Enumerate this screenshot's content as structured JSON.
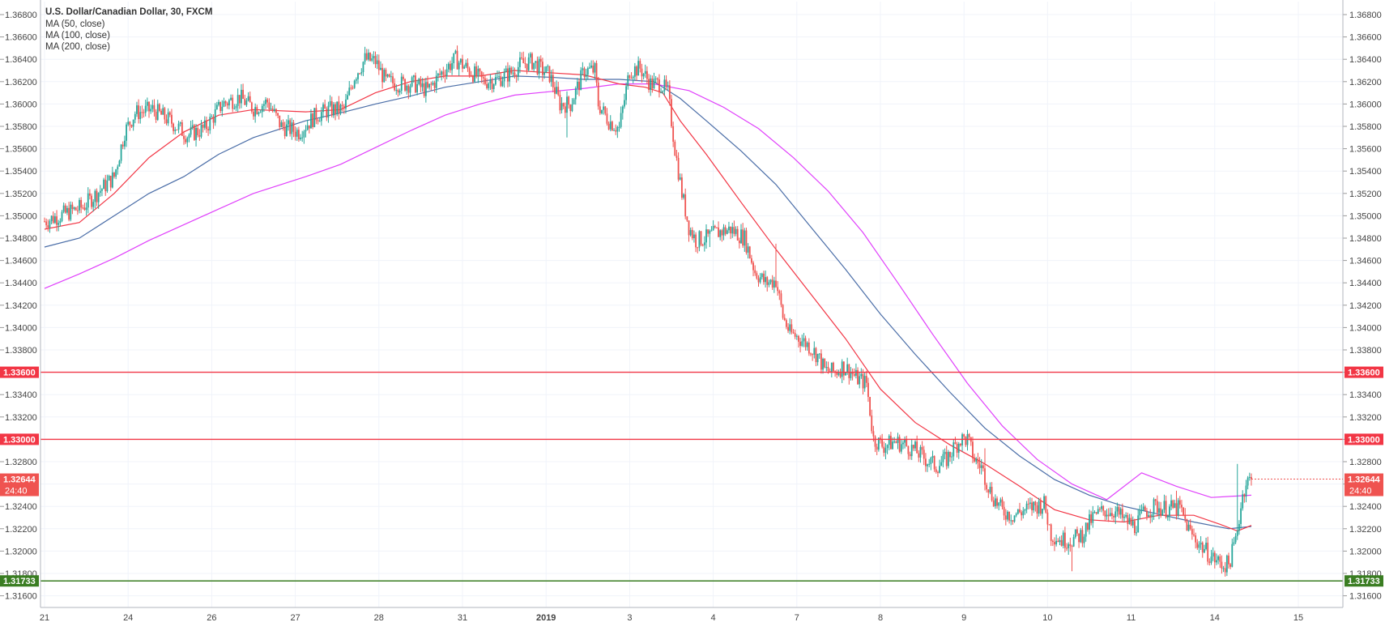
{
  "legend": {
    "title": "U.S. Dollar/Canadian Dollar, 30, FXCM",
    "ma50": "MA (50, close)",
    "ma100": "MA (100, close)",
    "ma200": "MA (200, close)"
  },
  "chart_data": {
    "type": "candlestick",
    "symbol": "USDCAD",
    "timeframe": "30",
    "source": "FXCM",
    "ylim": [
      1.316,
      1.369
    ],
    "y_ticks": [
      "1.36800",
      "1.36600",
      "1.36400",
      "1.36200",
      "1.36000",
      "1.35800",
      "1.35600",
      "1.35400",
      "1.35200",
      "1.35000",
      "1.34800",
      "1.34600",
      "1.34400",
      "1.34200",
      "1.34000",
      "1.33800",
      "1.33600",
      "1.33400",
      "1.33200",
      "1.33000",
      "1.32800",
      "1.32600",
      "1.32400",
      "1.32200",
      "1.32000",
      "1.31800",
      "1.31600"
    ],
    "x_ticks": [
      {
        "label": "21",
        "bar": 0
      },
      {
        "label": "24",
        "bar": 48
      },
      {
        "label": "26",
        "bar": 96
      },
      {
        "label": "27",
        "bar": 144
      },
      {
        "label": "28",
        "bar": 192
      },
      {
        "label": "31",
        "bar": 240
      },
      {
        "label": "2019",
        "bar": 288,
        "bold": true
      },
      {
        "label": "3",
        "bar": 336
      },
      {
        "label": "4",
        "bar": 384
      },
      {
        "label": "7",
        "bar": 432
      },
      {
        "label": "8",
        "bar": 480
      },
      {
        "label": "9",
        "bar": 528
      },
      {
        "label": "10",
        "bar": 576
      },
      {
        "label": "11",
        "bar": 624
      },
      {
        "label": "14",
        "bar": 672
      },
      {
        "label": "15",
        "bar": 720
      }
    ],
    "price_path": [
      [
        0,
        1.3495
      ],
      [
        12,
        1.3502
      ],
      [
        22,
        1.3508
      ],
      [
        30,
        1.352
      ],
      [
        40,
        1.3535
      ],
      [
        46,
        1.3575
      ],
      [
        52,
        1.3592
      ],
      [
        62,
        1.3595
      ],
      [
        72,
        1.3585
      ],
      [
        82,
        1.3572
      ],
      [
        92,
        1.3578
      ],
      [
        102,
        1.36
      ],
      [
        112,
        1.3606
      ],
      [
        120,
        1.3596
      ],
      [
        128,
        1.3602
      ],
      [
        136,
        1.358
      ],
      [
        146,
        1.3575
      ],
      [
        156,
        1.359
      ],
      [
        164,
        1.3595
      ],
      [
        172,
        1.3595
      ],
      [
        178,
        1.3625
      ],
      [
        184,
        1.364
      ],
      [
        190,
        1.3638
      ],
      [
        196,
        1.362
      ],
      [
        204,
        1.3618
      ],
      [
        212,
        1.3618
      ],
      [
        220,
        1.3612
      ],
      [
        228,
        1.3628
      ],
      [
        236,
        1.364
      ],
      [
        244,
        1.363
      ],
      [
        252,
        1.362
      ],
      [
        260,
        1.3622
      ],
      [
        268,
        1.3628
      ],
      [
        274,
        1.3636
      ],
      [
        280,
        1.3638
      ],
      [
        286,
        1.363
      ],
      [
        290,
        1.3626
      ],
      [
        296,
        1.36
      ],
      [
        302,
        1.36
      ],
      [
        310,
        1.363
      ],
      [
        316,
        1.363
      ],
      [
        318,
        1.36
      ],
      [
        324,
        1.3585
      ],
      [
        330,
        1.3578
      ],
      [
        336,
        1.363
      ],
      [
        342,
        1.3632
      ],
      [
        348,
        1.3618
      ],
      [
        354,
        1.3618
      ],
      [
        358,
        1.361
      ],
      [
        362,
        1.356
      ],
      [
        366,
        1.352
      ],
      [
        370,
        1.349
      ],
      [
        374,
        1.3478
      ],
      [
        380,
        1.348
      ],
      [
        386,
        1.3485
      ],
      [
        394,
        1.3488
      ],
      [
        402,
        1.348
      ],
      [
        408,
        1.345
      ],
      [
        414,
        1.344
      ],
      [
        420,
        1.3442
      ],
      [
        424,
        1.341
      ],
      [
        428,
        1.3395
      ],
      [
        432,
        1.3392
      ],
      [
        438,
        1.3385
      ],
      [
        444,
        1.3375
      ],
      [
        448,
        1.3362
      ],
      [
        454,
        1.336
      ],
      [
        458,
        1.3365
      ],
      [
        462,
        1.3362
      ],
      [
        466,
        1.3355
      ],
      [
        472,
        1.335
      ],
      [
        476,
        1.33
      ],
      [
        482,
        1.3294
      ],
      [
        488,
        1.3298
      ],
      [
        494,
        1.3295
      ],
      [
        500,
        1.329
      ],
      [
        506,
        1.3282
      ],
      [
        512,
        1.3276
      ],
      [
        518,
        1.3282
      ],
      [
        522,
        1.3292
      ],
      [
        526,
        1.33
      ],
      [
        530,
        1.33
      ],
      [
        534,
        1.3282
      ],
      [
        538,
        1.3275
      ],
      [
        544,
        1.325
      ],
      [
        550,
        1.3236
      ],
      [
        556,
        1.3232
      ],
      [
        562,
        1.3236
      ],
      [
        568,
        1.324
      ],
      [
        574,
        1.3242
      ],
      [
        578,
        1.3215
      ],
      [
        584,
        1.321
      ],
      [
        590,
        1.321
      ],
      [
        596,
        1.3215
      ],
      [
        602,
        1.323
      ],
      [
        608,
        1.3236
      ],
      [
        614,
        1.3236
      ],
      [
        620,
        1.3228
      ],
      [
        626,
        1.3222
      ],
      [
        632,
        1.3236
      ],
      [
        638,
        1.324
      ],
      [
        644,
        1.3238
      ],
      [
        652,
        1.3238
      ],
      [
        658,
        1.3216
      ],
      [
        664,
        1.3205
      ],
      [
        670,
        1.3195
      ],
      [
        676,
        1.3188
      ],
      [
        680,
        1.3188
      ],
      [
        684,
        1.321
      ],
      [
        686,
        1.323
      ],
      [
        688,
        1.325
      ],
      [
        690,
        1.3262
      ],
      [
        693,
        1.3264
      ]
    ],
    "wick_spikes": [
      [
        45,
        1.356
      ],
      [
        150,
        1.357
      ],
      [
        300,
        1.357
      ],
      [
        382,
        1.3472
      ],
      [
        420,
        1.3475
      ],
      [
        540,
        1.3292
      ],
      [
        590,
        1.3182
      ],
      [
        650,
        1.3254
      ],
      [
        685,
        1.3278
      ]
    ],
    "ma50": [
      [
        0,
        1.3488
      ],
      [
        20,
        1.3494
      ],
      [
        40,
        1.352
      ],
      [
        60,
        1.3552
      ],
      [
        80,
        1.3575
      ],
      [
        100,
        1.359
      ],
      [
        120,
        1.3595
      ],
      [
        150,
        1.3593
      ],
      [
        170,
        1.3595
      ],
      [
        190,
        1.361
      ],
      [
        210,
        1.362
      ],
      [
        230,
        1.3625
      ],
      [
        250,
        1.3625
      ],
      [
        270,
        1.363
      ],
      [
        290,
        1.3628
      ],
      [
        310,
        1.3626
      ],
      [
        330,
        1.3618
      ],
      [
        345,
        1.3615
      ],
      [
        355,
        1.361
      ],
      [
        365,
        1.3585
      ],
      [
        380,
        1.3555
      ],
      [
        400,
        1.3512
      ],
      [
        420,
        1.347
      ],
      [
        440,
        1.343
      ],
      [
        460,
        1.339
      ],
      [
        480,
        1.3345
      ],
      [
        500,
        1.3315
      ],
      [
        520,
        1.3295
      ],
      [
        540,
        1.3278
      ],
      [
        560,
        1.3258
      ],
      [
        580,
        1.3237
      ],
      [
        600,
        1.3228
      ],
      [
        620,
        1.3226
      ],
      [
        640,
        1.3232
      ],
      [
        660,
        1.3232
      ],
      [
        675,
        1.3224
      ],
      [
        685,
        1.3218
      ],
      [
        693,
        1.3223
      ]
    ],
    "ma100": [
      [
        0,
        1.3472
      ],
      [
        20,
        1.348
      ],
      [
        40,
        1.35
      ],
      [
        60,
        1.352
      ],
      [
        80,
        1.3535
      ],
      [
        100,
        1.3555
      ],
      [
        120,
        1.357
      ],
      [
        150,
        1.3585
      ],
      [
        170,
        1.3592
      ],
      [
        190,
        1.36
      ],
      [
        210,
        1.3607
      ],
      [
        230,
        1.3615
      ],
      [
        250,
        1.362
      ],
      [
        270,
        1.3625
      ],
      [
        290,
        1.3624
      ],
      [
        310,
        1.3622
      ],
      [
        330,
        1.3622
      ],
      [
        350,
        1.362
      ],
      [
        365,
        1.3605
      ],
      [
        380,
        1.3585
      ],
      [
        400,
        1.3558
      ],
      [
        420,
        1.3528
      ],
      [
        440,
        1.349
      ],
      [
        460,
        1.3452
      ],
      [
        480,
        1.3412
      ],
      [
        500,
        1.3376
      ],
      [
        520,
        1.3342
      ],
      [
        540,
        1.331
      ],
      [
        560,
        1.3285
      ],
      [
        580,
        1.3264
      ],
      [
        600,
        1.325
      ],
      [
        620,
        1.324
      ],
      [
        640,
        1.3233
      ],
      [
        660,
        1.3226
      ],
      [
        680,
        1.322
      ],
      [
        693,
        1.3222
      ]
    ],
    "ma200": [
      [
        0,
        1.3435
      ],
      [
        20,
        1.3448
      ],
      [
        40,
        1.3462
      ],
      [
        60,
        1.3478
      ],
      [
        80,
        1.3492
      ],
      [
        100,
        1.3506
      ],
      [
        120,
        1.352
      ],
      [
        150,
        1.3535
      ],
      [
        170,
        1.3546
      ],
      [
        190,
        1.3561
      ],
      [
        210,
        1.3576
      ],
      [
        230,
        1.359
      ],
      [
        250,
        1.36
      ],
      [
        270,
        1.3608
      ],
      [
        290,
        1.3611
      ],
      [
        310,
        1.3614
      ],
      [
        330,
        1.3618
      ],
      [
        350,
        1.3618
      ],
      [
        370,
        1.3612
      ],
      [
        390,
        1.3597
      ],
      [
        410,
        1.3578
      ],
      [
        430,
        1.3552
      ],
      [
        450,
        1.3522
      ],
      [
        470,
        1.3485
      ],
      [
        490,
        1.344
      ],
      [
        510,
        1.3394
      ],
      [
        530,
        1.335
      ],
      [
        550,
        1.3312
      ],
      [
        570,
        1.3282
      ],
      [
        590,
        1.326
      ],
      [
        610,
        1.3246
      ],
      [
        630,
        1.327
      ],
      [
        650,
        1.3258
      ],
      [
        670,
        1.3248
      ],
      [
        693,
        1.325
      ]
    ],
    "horizontal_lines": [
      {
        "price": 1.336,
        "label": "1.33600",
        "color": "#f23645"
      },
      {
        "price": 1.33,
        "label": "1.33000",
        "color": "#f23645"
      },
      {
        "price": 1.31733,
        "label": "1.31733",
        "color": "#3a7d22"
      }
    ],
    "last_price": {
      "price": 1.32644,
      "label": "1.32644",
      "countdown": "24:40"
    }
  },
  "colors": {
    "up": "#26a69a",
    "down": "#ef5350",
    "ma50": "#f23645",
    "ma100": "#4a6da7",
    "ma200": "#e040fb",
    "grid": "#f0f3fa",
    "axis_text": "#444444"
  }
}
